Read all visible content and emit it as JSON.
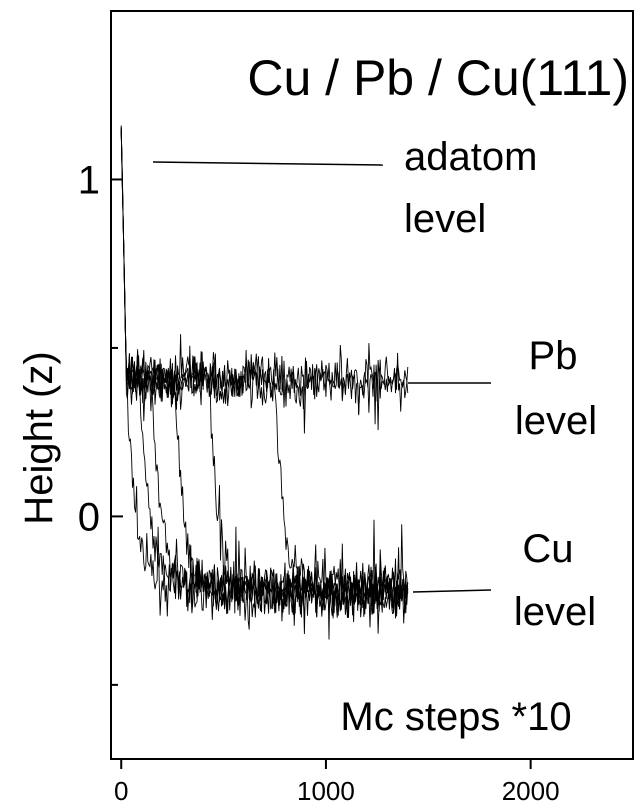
{
  "chart_data": {
    "type": "line",
    "title": "Cu / Pb / Cu(111)",
    "xlabel": "",
    "ylabel": "Height (z)",
    "xlim": [
      -50,
      2500
    ],
    "ylim": [
      -0.72,
      1.5
    ],
    "x_ticks": [
      0,
      1000,
      2000
    ],
    "y_ticks": [
      0,
      1
    ],
    "y_tick_labels": [
      "0",
      "1"
    ],
    "y_minor_ticks": [
      -0.5,
      0.5
    ],
    "grid": false,
    "legend": "none",
    "annotations": [
      {
        "id": "adatom",
        "lines": [
          "adatom",
          "level"
        ],
        "target_y": 1.05
      },
      {
        "id": "pb",
        "lines": [
          "Pb",
          "level"
        ],
        "target_y": 0.39
      },
      {
        "id": "cu",
        "lines": [
          "Cu",
          "level"
        ],
        "target_y": -0.23
      },
      {
        "id": "steps",
        "lines": [
          "Mc steps *10"
        ]
      }
    ],
    "series": [
      {
        "end_x": 1400,
        "switch_x": 0,
        "final_level": -0.21
      },
      {
        "end_x": 1400,
        "switch_x": 90,
        "final_level": -0.21
      },
      {
        "end_x": 1400,
        "switch_x": 150,
        "final_level": -0.21
      },
      {
        "end_x": 1400,
        "switch_x": 260,
        "final_level": -0.23
      },
      {
        "end_x": 1400,
        "switch_x": 430,
        "final_level": -0.24
      },
      {
        "end_x": 1400,
        "switch_x": 750,
        "final_level": -0.22
      },
      {
        "end_x": 1400,
        "switch_x": 99999,
        "final_level": 0.39
      },
      {
        "end_x": 1400,
        "switch_x": 99999,
        "final_level": 0.4
      }
    ]
  }
}
